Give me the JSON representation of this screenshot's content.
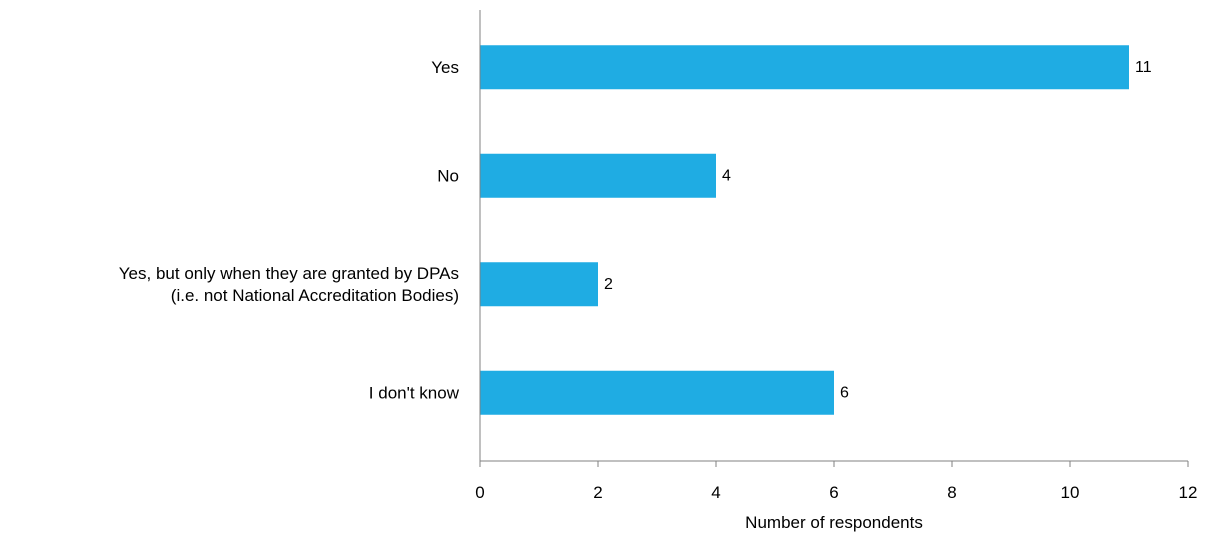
{
  "chart_data": {
    "type": "bar",
    "orientation": "horizontal",
    "categories": [
      [
        "Yes"
      ],
      [
        "No"
      ],
      [
        "Yes, but only when they are granted by DPAs",
        "(i.e. not National Accreditation Bodies)"
      ],
      [
        "I don't know"
      ]
    ],
    "values": [
      11,
      4,
      2,
      6
    ],
    "data_labels": [
      "11",
      "4",
      "2",
      "6"
    ],
    "xlabel": "Number of respondents",
    "xlim": [
      0,
      12
    ],
    "xticks": [
      0,
      2,
      4,
      6,
      8,
      10,
      12
    ],
    "xtick_labels": [
      "0",
      "2",
      "4",
      "6",
      "8",
      "10",
      "12"
    ],
    "grid": false,
    "bar_color": "#1FACE3",
    "axis_color": "#808080"
  }
}
